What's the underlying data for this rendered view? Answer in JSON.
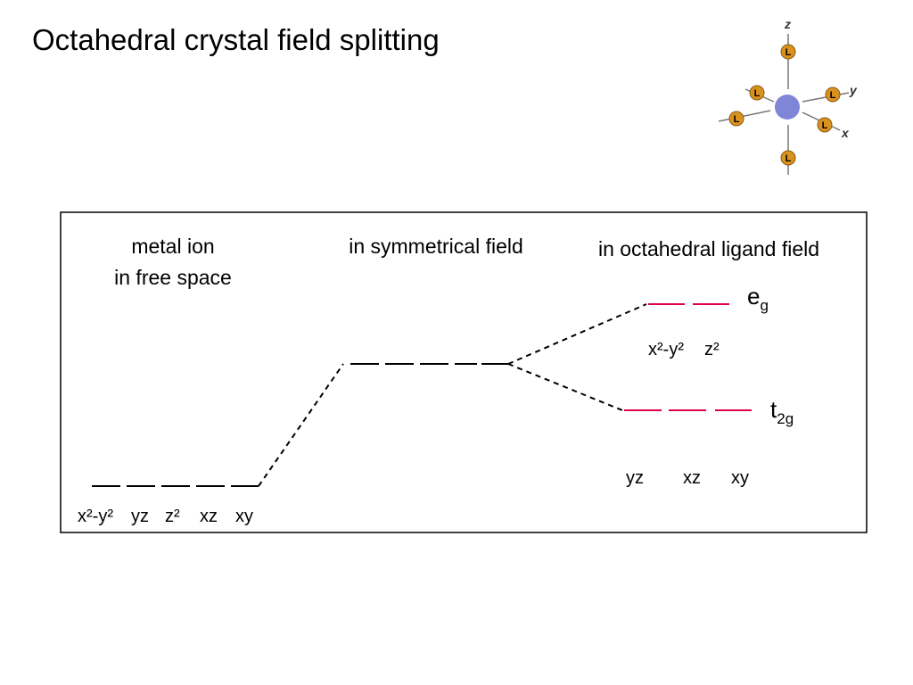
{
  "header": {
    "title": "Octahedral crystal field splitting"
  },
  "icon": {
    "axes": {
      "z": "z",
      "y": "y",
      "x": "x"
    },
    "ligands": [
      "L",
      "L",
      "L",
      "L",
      "L",
      "L"
    ]
  },
  "diagram": {
    "free_space": {
      "caption": [
        "metal ion",
        "in free space"
      ],
      "orbitals": [
        "x²-y²",
        "yz",
        "z²",
        "xz",
        "xy"
      ]
    },
    "symmetrical": {
      "caption": "in symmetrical field"
    },
    "octahedral": {
      "caption": "in octahedral ligand field",
      "eg": {
        "symbol": "e",
        "subscript": "g",
        "orbitals": [
          "x²-y²",
          "z²"
        ]
      },
      "t2g": {
        "symbol": "t",
        "subscript": "2g",
        "orbitals": [
          "yz",
          "xz",
          "xy"
        ]
      }
    }
  }
}
